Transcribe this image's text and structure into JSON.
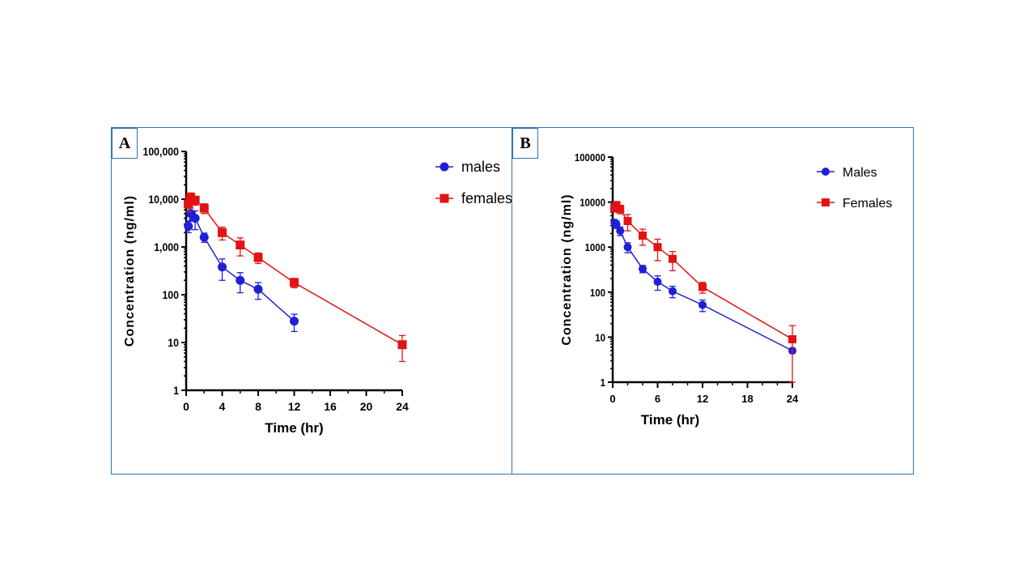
{
  "colors": {
    "panel_border": "#2e75b6",
    "males": "#1f1fd6",
    "females": "#e11414",
    "axis": "#000000"
  },
  "chart_data": [
    {
      "panel_label": "A",
      "type": "line",
      "xlabel": "Time (hr)",
      "ylabel": "Concentration (ng/ml)",
      "yscale": "log",
      "ylim": [
        1,
        100000
      ],
      "xlim": [
        0,
        24
      ],
      "x_ticks": [
        0,
        4,
        8,
        12,
        16,
        20,
        24
      ],
      "y_ticks": [
        1,
        10,
        100,
        1000,
        10000,
        100000
      ],
      "y_tick_labels": [
        "1",
        "10",
        "100",
        "1,000",
        "10,000",
        "100,000"
      ],
      "legend_position": "top-right",
      "series": [
        {
          "name": "males",
          "marker": "circle",
          "color": "#1f1fd6",
          "x": [
            0.25,
            0.5,
            1,
            2,
            4,
            6,
            8,
            12
          ],
          "y": [
            2700,
            5000,
            4000,
            1600,
            380,
            200,
            130,
            28
          ],
          "err": [
            700,
            1500,
            1700,
            350,
            180,
            90,
            50,
            11
          ]
        },
        {
          "name": "females",
          "marker": "square",
          "color": "#e11414",
          "x": [
            0.25,
            0.5,
            1,
            2,
            4,
            6,
            8,
            12,
            24
          ],
          "y": [
            8000,
            11000,
            9500,
            6500,
            2000,
            1100,
            600,
            180,
            9
          ],
          "err": [
            2500,
            2500,
            2000,
            1500,
            600,
            450,
            150,
            40,
            5
          ]
        }
      ]
    },
    {
      "panel_label": "B",
      "type": "line",
      "xlabel": "Time (hr)",
      "ylabel": "Concentration (ng/ml)",
      "yscale": "log",
      "ylim": [
        1,
        100000
      ],
      "xlim": [
        0,
        24
      ],
      "x_ticks": [
        0,
        6,
        12,
        18,
        24
      ],
      "y_ticks": [
        1,
        10,
        100,
        1000,
        10000,
        100000
      ],
      "y_tick_labels": [
        "1",
        "10",
        "100",
        "1000",
        "10000",
        "100000"
      ],
      "legend_position": "top-right",
      "series": [
        {
          "name": "Males",
          "marker": "circle",
          "color": "#1f1fd6",
          "x": [
            0.25,
            0.5,
            1,
            2,
            4,
            6,
            8,
            12,
            24
          ],
          "y": [
            3500,
            3200,
            2300,
            1000,
            330,
            170,
            105,
            52,
            5
          ],
          "err": [
            600,
            600,
            500,
            250,
            60,
            60,
            30,
            15,
            0.6
          ]
        },
        {
          "name": "Females",
          "marker": "square",
          "color": "#e11414",
          "x": [
            0.25,
            0.5,
            1,
            2,
            4,
            6,
            8,
            12,
            24
          ],
          "y": [
            7500,
            8500,
            7000,
            3800,
            1800,
            1000,
            550,
            130,
            9
          ],
          "err": [
            1500,
            1800,
            1500,
            1500,
            700,
            500,
            250,
            35,
            9
          ]
        }
      ]
    }
  ]
}
